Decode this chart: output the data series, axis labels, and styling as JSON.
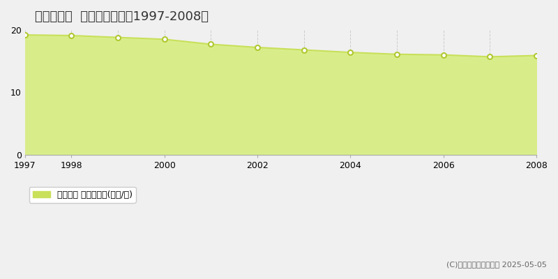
{
  "title": "新見市新見  基準地価推移［1997-2008］",
  "years": [
    1997,
    1998,
    1999,
    2000,
    2001,
    2002,
    2003,
    2004,
    2005,
    2006,
    2007,
    2008
  ],
  "values": [
    19.2,
    19.1,
    18.8,
    18.5,
    17.7,
    17.2,
    16.8,
    16.4,
    16.1,
    16.0,
    15.7,
    15.9
  ],
  "ylim": [
    0,
    20
  ],
  "yticks": [
    0,
    10,
    20
  ],
  "line_color": "#c8e05a",
  "fill_color": "#d8ed8a",
  "marker_color": "#ffffff",
  "marker_edge_color": "#b0c830",
  "background_color": "#f0f0f0",
  "plot_bg_color": "#f0f0f0",
  "grid_color": "#cccccc",
  "legend_label": "基準地価 平均坪単価(万円/坪)",
  "legend_color": "#c8e05a",
  "copyright_text": "(C)土地価格ドットコム 2025-05-05",
  "title_fontsize": 13
}
